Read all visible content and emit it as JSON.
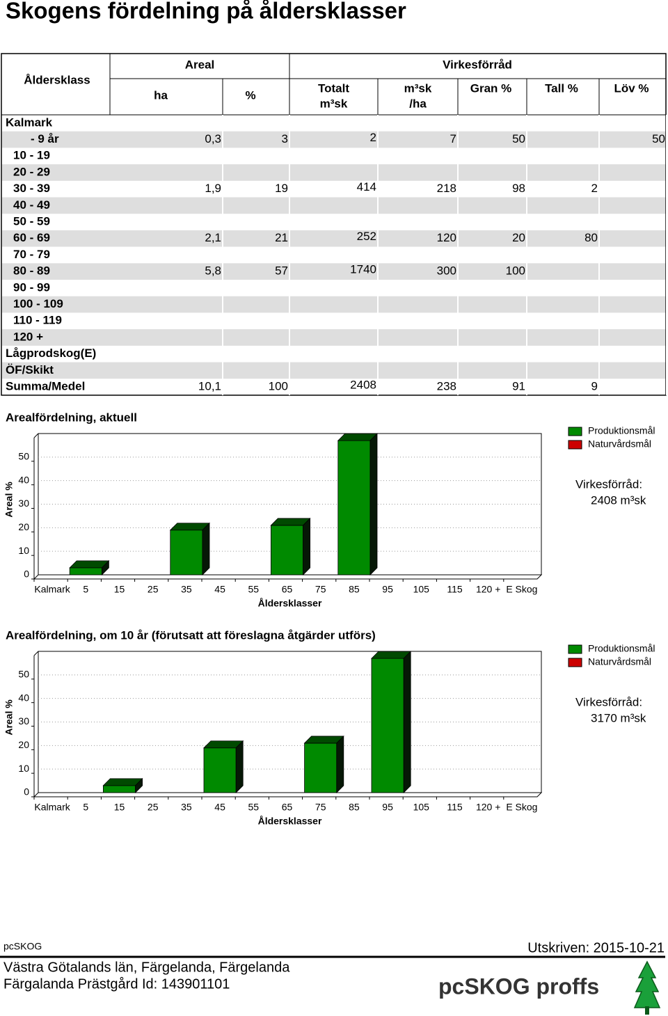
{
  "title": "Skogens fördelning på åldersklasser",
  "table": {
    "headers": {
      "age_class": "Åldersklass",
      "areal": "Areal",
      "volume": "Virkesförråd",
      "columns": [
        [
          "ha"
        ],
        [
          "%"
        ],
        [
          "Totalt",
          "m³sk"
        ],
        [
          "m³sk",
          "/ha"
        ],
        [
          "Gran %"
        ],
        [
          "Tall %"
        ],
        [
          "Löv %"
        ]
      ]
    },
    "rows": [
      [
        "Kalmark",
        null,
        null,
        null,
        null,
        null,
        null,
        null
      ],
      [
        "- 9 år",
        "0,3",
        "3",
        "2",
        "7",
        "50",
        null,
        "50"
      ],
      [
        "10 - 19",
        null,
        null,
        null,
        null,
        null,
        null,
        null
      ],
      [
        "20 - 29",
        null,
        null,
        null,
        null,
        null,
        null,
        null
      ],
      [
        "30 - 39",
        "1,9",
        "19",
        "414",
        "218",
        "98",
        "2",
        null
      ],
      [
        "40 - 49",
        null,
        null,
        null,
        null,
        null,
        null,
        null
      ],
      [
        "50 - 59",
        null,
        null,
        null,
        null,
        null,
        null,
        null
      ],
      [
        "60 - 69",
        "2,1",
        "21",
        "252",
        "120",
        "20",
        "80",
        null
      ],
      [
        "70 - 79",
        null,
        null,
        null,
        null,
        null,
        null,
        null
      ],
      [
        "80 - 89",
        "5,8",
        "57",
        "1740",
        "300",
        "100",
        null,
        null
      ],
      [
        "90 - 99",
        null,
        null,
        null,
        null,
        null,
        null,
        null
      ],
      [
        "100 - 109",
        null,
        null,
        null,
        null,
        null,
        null,
        null
      ],
      [
        "110 - 119",
        null,
        null,
        null,
        null,
        null,
        null,
        null
      ],
      [
        "120 +",
        null,
        null,
        null,
        null,
        null,
        null,
        null
      ],
      [
        "Lågprodskog(E)",
        null,
        null,
        null,
        null,
        null,
        null,
        null
      ],
      [
        "ÖF/Skikt",
        null,
        null,
        null,
        null,
        null,
        null,
        null
      ],
      [
        "Summa/Medel",
        "10,1",
        "100",
        "2408",
        "238",
        "91",
        "9",
        null
      ]
    ]
  },
  "chart_data": [
    {
      "type": "bar",
      "title": "Arealfördelning, aktuell",
      "ylabel": "Areal %",
      "xlabel": "Åldersklasser",
      "categories": [
        "Kalmark",
        "5",
        "15",
        "25",
        "35",
        "45",
        "55",
        "65",
        "75",
        "85",
        "95",
        "105",
        "115",
        "120 +",
        "E Skog"
      ],
      "series": [
        {
          "name": "Produktionsmål",
          "color": "#008a00",
          "values": [
            0,
            3,
            0,
            0,
            19,
            0,
            0,
            21,
            0,
            57,
            0,
            0,
            0,
            0,
            0
          ]
        },
        {
          "name": "Naturvårdsmål",
          "color": "#cc0000",
          "values": [
            0,
            0,
            0,
            0,
            0,
            0,
            0,
            0,
            0,
            0,
            0,
            0,
            0,
            0,
            0
          ]
        }
      ],
      "ylim": [
        0,
        60
      ],
      "yticks": [
        0,
        10,
        20,
        30,
        40,
        50
      ],
      "grid": true,
      "stacked": true,
      "stock_label": "Virkesförråd:",
      "stock": "2408 m³sk"
    },
    {
      "type": "bar",
      "title": "Arealfördelning, om 10 år (förutsatt att föreslagna åtgärder utförs)",
      "ylabel": "Areal %",
      "xlabel": "Åldersklasser",
      "categories": [
        "Kalmark",
        "5",
        "15",
        "25",
        "35",
        "45",
        "55",
        "65",
        "75",
        "85",
        "95",
        "105",
        "115",
        "120 +",
        "E Skog"
      ],
      "series": [
        {
          "name": "Produktionsmål",
          "color": "#008a00",
          "values": [
            0,
            0,
            3,
            0,
            0,
            19,
            0,
            0,
            21,
            0,
            57,
            0,
            0,
            0,
            0
          ]
        },
        {
          "name": "Naturvårdsmål",
          "color": "#cc0000",
          "values": [
            0,
            0,
            0,
            0,
            0,
            0,
            0,
            0,
            0,
            0,
            0,
            0,
            0,
            0,
            0
          ]
        }
      ],
      "ylim": [
        0,
        60
      ],
      "yticks": [
        0,
        10,
        20,
        30,
        40,
        50
      ],
      "grid": true,
      "stacked": true,
      "stock_label": "Virkesförråd:",
      "stock": "3170 m³sk"
    }
  ],
  "footer": {
    "app": "pcSKOG",
    "printed": "Utskriven: 2015-10-21",
    "location": "Västra Götalands län, Färgelanda, Färgelanda",
    "property": "Färgalanda Prästgård Id: 143901101",
    "logo": "pcSKOG proffs"
  }
}
